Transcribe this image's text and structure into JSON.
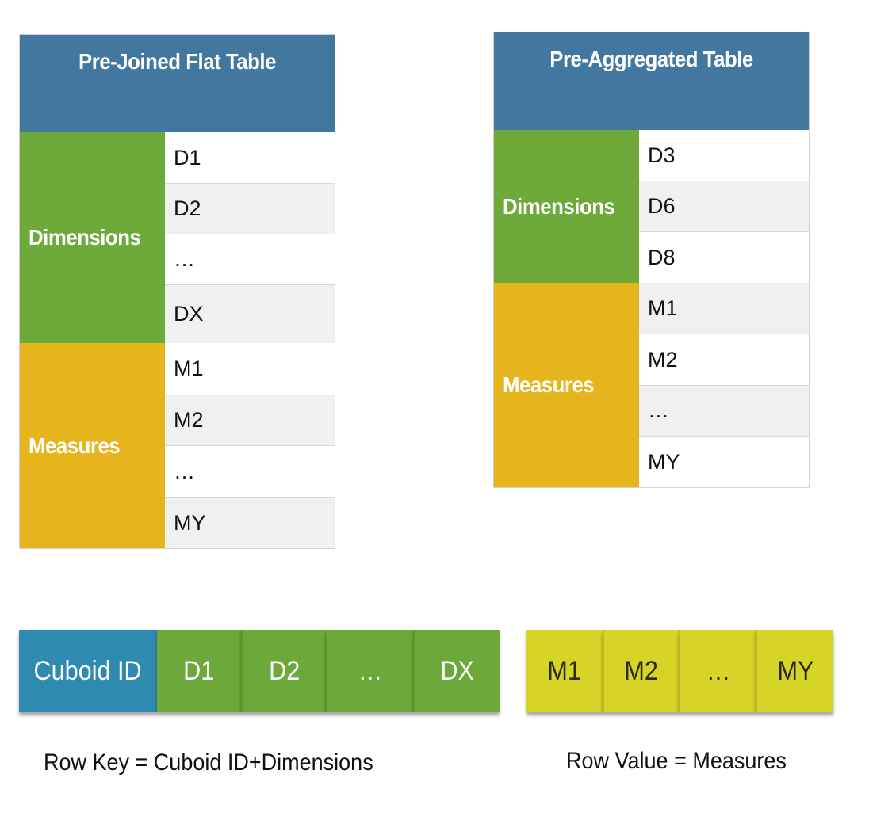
{
  "left_table": {
    "title": "Pre-Joined Flat Table",
    "dimensions_label": "Dimensions",
    "measures_label": "Measures",
    "dimension_cells": [
      "D1",
      "D2",
      "…",
      "DX"
    ],
    "measure_cells": [
      "M1",
      "M2",
      "…",
      "MY"
    ]
  },
  "right_table": {
    "title": "Pre-Aggregated Table",
    "dimensions_label": "Dimensions",
    "measures_label": "Measures",
    "dimension_cells": [
      "D3",
      "D6",
      "D8"
    ],
    "measure_cells": [
      "M1",
      "M2",
      "…",
      "MY"
    ]
  },
  "row_key": {
    "blocks": [
      "Cuboid ID",
      "D1",
      "D2",
      "…",
      "DX"
    ],
    "caption": "Row Key = Cuboid ID+Dimensions"
  },
  "row_value": {
    "blocks": [
      "M1",
      "M2",
      "…",
      "MY"
    ],
    "caption": "Row Value = Measures"
  },
  "colors": {
    "header_blue": "#42789f",
    "dimensions_green": "#6daa3a",
    "measures_yellow": "#e6b41c",
    "cuboid_blue": "#2e8ab0",
    "key_green": "#6ca93a",
    "value_yellow": "#d6d426"
  }
}
